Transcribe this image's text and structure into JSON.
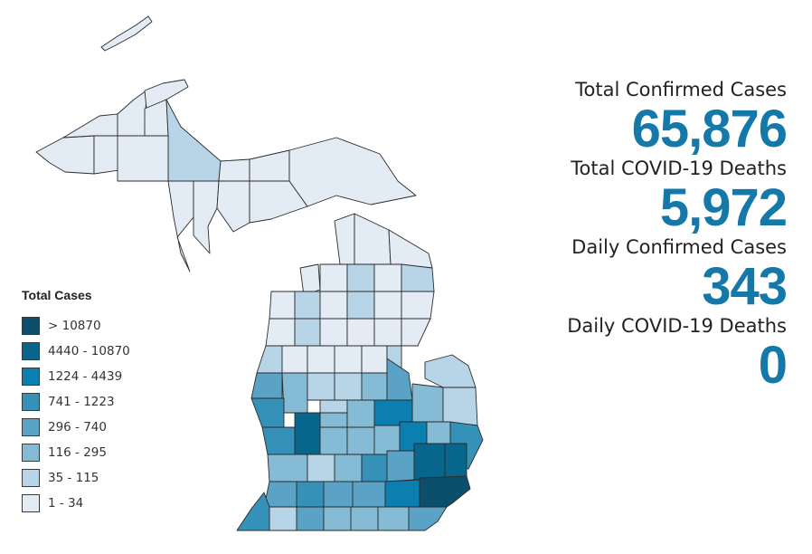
{
  "map": {
    "legend": {
      "title": "Total Cases",
      "items": [
        {
          "label": "> 10870",
          "color": "#0b4f6c"
        },
        {
          "label": "4440 - 10870",
          "color": "#08668c"
        },
        {
          "label": "1224 - 4439",
          "color": "#0a7fb0"
        },
        {
          "label": "741 - 1223",
          "color": "#3591b8"
        },
        {
          "label": "296 - 740",
          "color": "#5ba3c6"
        },
        {
          "label": "116 - 295",
          "color": "#86bbd6"
        },
        {
          "label": "35 - 115",
          "color": "#b7d5e6"
        },
        {
          "label": "1 - 34",
          "color": "#e3ebf4"
        }
      ]
    }
  },
  "stats": {
    "accent_color": "#1478a8",
    "items": [
      {
        "label": "Total Confirmed Cases",
        "value": "65,876"
      },
      {
        "label": "Total COVID-19 Deaths",
        "value": "5,972"
      },
      {
        "label": "Daily Confirmed Cases",
        "value": "343"
      },
      {
        "label": "Daily COVID-19 Deaths",
        "value": "0"
      }
    ]
  }
}
